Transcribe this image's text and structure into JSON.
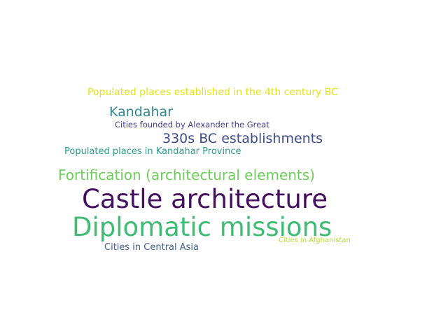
{
  "word_cloud": {
    "words": [
      {
        "text": "Populated places established in the 4th century BC",
        "color": "#e2e418"
      },
      {
        "text": "Kandahar",
        "color": "#35858e"
      },
      {
        "text": "Cities founded by Alexander the Great",
        "color": "#433e85"
      },
      {
        "text": "330s BC establishments",
        "color": "#3e4c8a"
      },
      {
        "text": "Populated places in Kandahar Province",
        "color": "#2c9a8a"
      },
      {
        "text": "Fortification (architectural elements)",
        "color": "#6ccd5a"
      },
      {
        "text": "Castle architecture",
        "color": "#440f5e"
      },
      {
        "text": "Diplomatic missions",
        "color": "#3fbc73"
      },
      {
        "text": "Cities in Central Asia",
        "color": "#3e5f8e"
      },
      {
        "text": "Cities in Afghanistan",
        "color": "#b5de2b"
      }
    ]
  }
}
